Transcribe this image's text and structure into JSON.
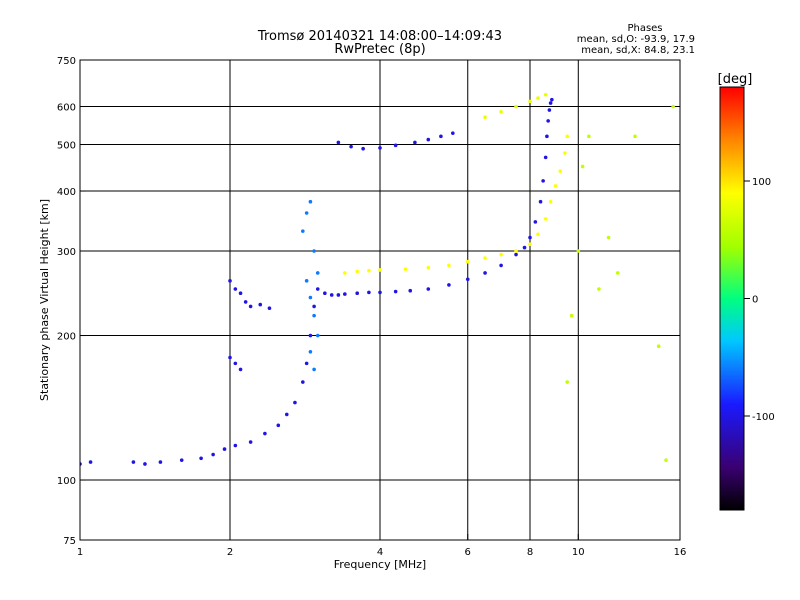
{
  "chart_data": {
    "type": "scatter",
    "title": "Tromsø 20140321 14:08:00–14:09:43",
    "subtitle": "RwPretec (8p)",
    "phases_header": "Phases",
    "stats": [
      "mean, sd,O: -93.9, 17.9",
      "mean, sd,X:  84.8, 23.1"
    ],
    "xlabel": "Frequency [MHz]",
    "ylabel": "Stationary phase Virtual Height [km]",
    "x_scale": "log",
    "y_scale": "log",
    "xlim": [
      1,
      16
    ],
    "ylim": [
      75,
      750
    ],
    "x_ticks": [
      1,
      2,
      4,
      6,
      8,
      10,
      16
    ],
    "y_ticks": [
      75,
      100,
      200,
      300,
      400,
      500,
      600,
      750
    ],
    "gridlines_x": [
      2,
      4,
      6,
      8,
      10
    ],
    "gridlines_y": [
      100,
      200,
      300,
      400,
      500,
      600
    ],
    "grid": true,
    "colorbar": {
      "label": "[deg]",
      "range": [
        -180,
        180
      ],
      "ticks": [
        100,
        0,
        -100
      ],
      "colors": [
        "#000000",
        "#3a0070",
        "#1a1aff",
        "#00c8ff",
        "#00ff80",
        "#a0ff00",
        "#ffff00",
        "#ff8000",
        "#ff0000"
      ]
    },
    "series": [
      {
        "trace": "O-mode low branch (blue)",
        "phase_deg": -100,
        "x": [
          1.0,
          1.05,
          1.28,
          1.35,
          1.45,
          1.6,
          1.75,
          1.85,
          1.95,
          2.05,
          2.2,
          2.35,
          2.5,
          2.6,
          2.7,
          2.8,
          2.85,
          2.9,
          2.95,
          3.0,
          3.1,
          3.2,
          3.3,
          3.4,
          3.6,
          3.8,
          4.0,
          4.3,
          4.6,
          5.0,
          5.5,
          6.0,
          6.5,
          7.0,
          7.5,
          7.8,
          8.0,
          8.2,
          8.4,
          8.5,
          8.6,
          8.65,
          8.7,
          8.75,
          8.8,
          8.85
        ],
        "y": [
          108,
          109,
          109,
          108,
          109,
          110,
          111,
          113,
          116,
          118,
          120,
          125,
          130,
          137,
          145,
          160,
          175,
          200,
          230,
          250,
          245,
          243,
          243,
          244,
          245,
          246,
          246,
          247,
          248,
          250,
          255,
          262,
          270,
          280,
          295,
          305,
          320,
          345,
          380,
          420,
          470,
          520,
          560,
          590,
          610,
          620
        ]
      },
      {
        "trace": "X-mode low branch (yellow/green)",
        "phase_deg": 90,
        "x": [
          3.4,
          3.6,
          3.8,
          4.0,
          4.5,
          5.0,
          5.5,
          6.0,
          6.5,
          7.0,
          7.5,
          8.0,
          8.3,
          8.6,
          8.8,
          9.0,
          9.2,
          9.4,
          9.5
        ],
        "y": [
          270,
          272,
          273,
          274,
          275,
          277,
          280,
          285,
          290,
          295,
          300,
          310,
          325,
          350,
          380,
          410,
          440,
          480,
          520
        ]
      },
      {
        "trace": "Upper O-mode branch (blue)",
        "phase_deg": -100,
        "x": [
          3.3,
          3.5,
          3.7,
          4.0,
          4.3,
          4.7,
          5.0,
          5.3,
          5.6
        ],
        "y": [
          505,
          495,
          490,
          492,
          498,
          505,
          512,
          520,
          528
        ]
      },
      {
        "trace": "Upper X-mode branch (yellow)",
        "phase_deg": 80,
        "x": [
          6.5,
          7.0,
          7.5,
          8.0,
          8.3,
          8.6
        ],
        "y": [
          570,
          585,
          600,
          615,
          625,
          635
        ]
      },
      {
        "trace": "Spread near 2 MHz (blue)",
        "phase_deg": -100,
        "x": [
          2.0,
          2.05,
          2.1,
          2.15,
          2.2,
          2.3,
          2.4,
          2.0,
          2.05,
          2.1
        ],
        "y": [
          260,
          250,
          245,
          235,
          230,
          232,
          228,
          180,
          175,
          170
        ]
      },
      {
        "trace": "Spread column near 2.8-3.0 MHz (cyan/blue)",
        "phase_deg": -60,
        "x": [
          2.8,
          2.85,
          2.9,
          2.95,
          3.0,
          2.85,
          2.9,
          2.95,
          3.0,
          2.9,
          2.95
        ],
        "y": [
          330,
          360,
          380,
          300,
          270,
          260,
          240,
          220,
          200,
          185,
          170
        ]
      },
      {
        "trace": "Scattered points 9-16 MHz",
        "phase_deg": 60,
        "x": [
          9.5,
          9.7,
          10.0,
          10.2,
          10.5,
          11.0,
          11.5,
          12.0,
          13.0,
          14.5,
          15.0,
          15.5
        ],
        "y": [
          160,
          220,
          300,
          450,
          520,
          250,
          320,
          270,
          520,
          190,
          110,
          600
        ]
      }
    ]
  }
}
